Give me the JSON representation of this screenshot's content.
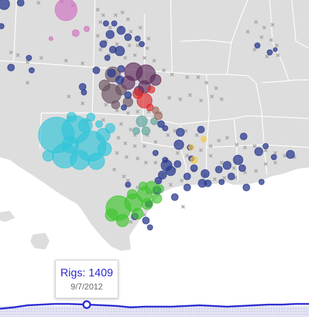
{
  "tooltip": {
    "label": "Rigs: 1409",
    "date": "9/7/2012"
  },
  "timeline": {
    "rig_count": 1409,
    "selected_date": "9/7/2012"
  },
  "colors": {
    "land": "#dddddd",
    "water": "#ffffff",
    "border": "#ffffff",
    "marker": "#a9a9a9",
    "navy": "#2b3b8f",
    "magenta": "#d070c0",
    "plum": "#5e2a5a",
    "taupe": "#6a5060",
    "red": "#e0262a",
    "cyan": "#30c4d8",
    "green": "#3ec42c",
    "teal": "#5aa49c",
    "yellow": "#f5c842",
    "brown": "#9c6a5a",
    "line": "#2a2ad0",
    "timeline_bg": "#e4e4f4"
  }
}
